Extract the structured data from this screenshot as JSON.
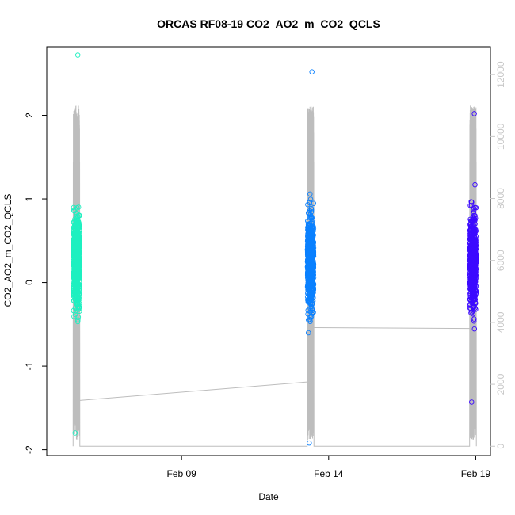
{
  "chart_data": {
    "type": "scatter",
    "title": "ORCAS RF08-19 CO2_AO2_m_CO2_QCLS",
    "xlabel": "Date",
    "ylabel": "CO2_AO2_m_CO2_QCLS",
    "x_ticks": [
      {
        "date": "2016-02-09",
        "label": "Feb 09"
      },
      {
        "date": "2016-02-14",
        "label": "Feb 14"
      },
      {
        "date": "2016-02-19",
        "label": "Feb 19"
      }
    ],
    "y_ticks": [
      -2,
      -1,
      0,
      1,
      2
    ],
    "y2_ticks": [
      0,
      2000,
      4000,
      6000,
      8000,
      10000,
      12000
    ],
    "xlim": [
      "2016-02-04T10:00",
      "2016-02-19T12:00"
    ],
    "ylim": [
      -2.07,
      2.82
    ],
    "y2lim": [
      -300,
      12900
    ],
    "series": [
      {
        "date": "2016-02-05",
        "start": "2016-02-05T07:30",
        "end": "2016-02-05T13:00",
        "color": "#1ef0c0",
        "ylim_points": [
          -1.8,
          2.72
        ]
      },
      {
        "date": "2016-02-13",
        "start": "2016-02-13T06:30",
        "end": "2016-02-13T12:00",
        "color": "#0a80ff",
        "ylim_points": [
          -1.92,
          2.52
        ]
      },
      {
        "date": "2016-02-19",
        "start": "2016-02-18T19:00",
        "end": "2016-02-19T00:30",
        "color": "#3c0aff",
        "ylim_points": [
          -1.43,
          2.02
        ]
      }
    ],
    "altitude_color": "#bdbdbd",
    "point_style": "open-circle"
  }
}
